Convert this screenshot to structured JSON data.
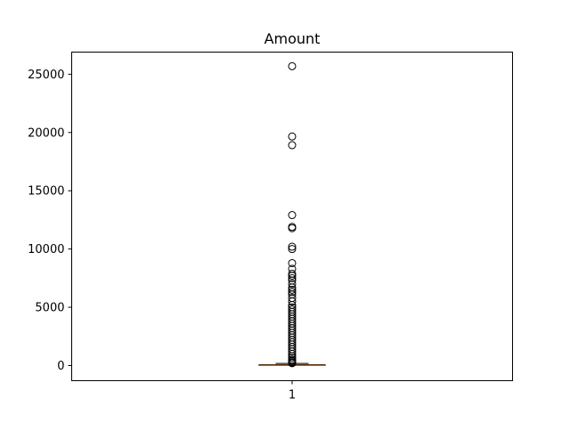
{
  "chart_data": {
    "type": "box",
    "title": "Amount",
    "xlabel": "",
    "ylabel": "",
    "categories": [
      "1"
    ],
    "ylim": [
      -1300,
      26900
    ],
    "yticks": [
      0,
      5000,
      10000,
      15000,
      20000,
      25000
    ],
    "ytick_labels": [
      "0",
      "5000",
      "10000",
      "15000",
      "20000",
      "25000"
    ],
    "grid": false,
    "box": {
      "whisker_low": 0,
      "q1": 5,
      "median": 22,
      "q3": 77,
      "whisker_high": 185
    },
    "median_color": "#ff7f0e",
    "outliers": [
      25691,
      19656,
      18910,
      12910,
      11898,
      11790,
      10199,
      10000,
      8790,
      8300,
      7879,
      7712,
      7500,
      7300,
      7000,
      6700,
      6500,
      6300,
      6100,
      5800,
      5500,
      5200,
      5000,
      4800,
      4600,
      4400,
      4200,
      4000,
      3800,
      3600,
      3400,
      3200,
      3000,
      2800,
      2600,
      2400,
      2200,
      2000,
      1800,
      1600,
      1400,
      1200,
      1000,
      800,
      650,
      500,
      400,
      300,
      250,
      200
    ]
  }
}
